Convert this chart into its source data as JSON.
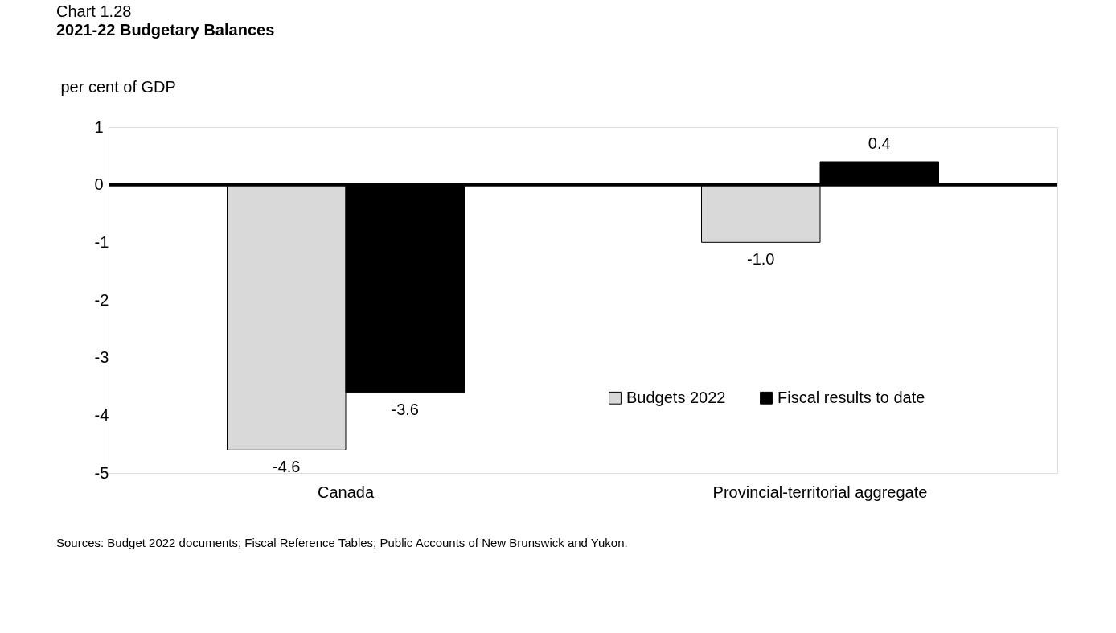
{
  "chart_data": {
    "type": "bar",
    "title": "Chart 1.28",
    "subtitle": "2021-22 Budgetary Balances",
    "ylabel": "per cent of GDP",
    "categories": [
      "Canada",
      "Provincial-territorial aggregate"
    ],
    "series": [
      {
        "name": "Budgets 2022",
        "color": "#d9d9d9",
        "values": [
          -4.6,
          -1.0
        ],
        "value_labels": [
          "-4.6",
          "-1.0"
        ]
      },
      {
        "name": "Fiscal results to date",
        "color": "#000000",
        "values": [
          -3.6,
          0.4
        ],
        "value_labels": [
          "-3.6",
          "0.4"
        ]
      }
    ],
    "ylim": [
      -5,
      1
    ],
    "yticks": [
      -5,
      -4,
      -3,
      -2,
      -1,
      0,
      1
    ],
    "grid": false,
    "legend": "right",
    "ref_lines": [
      {
        "axis": "y",
        "value": 0
      }
    ],
    "annotations": [
      "Sources: Budget 2022 documents; Fiscal Reference Tables; Public Accounts of New Brunswick and Yukon."
    ]
  }
}
